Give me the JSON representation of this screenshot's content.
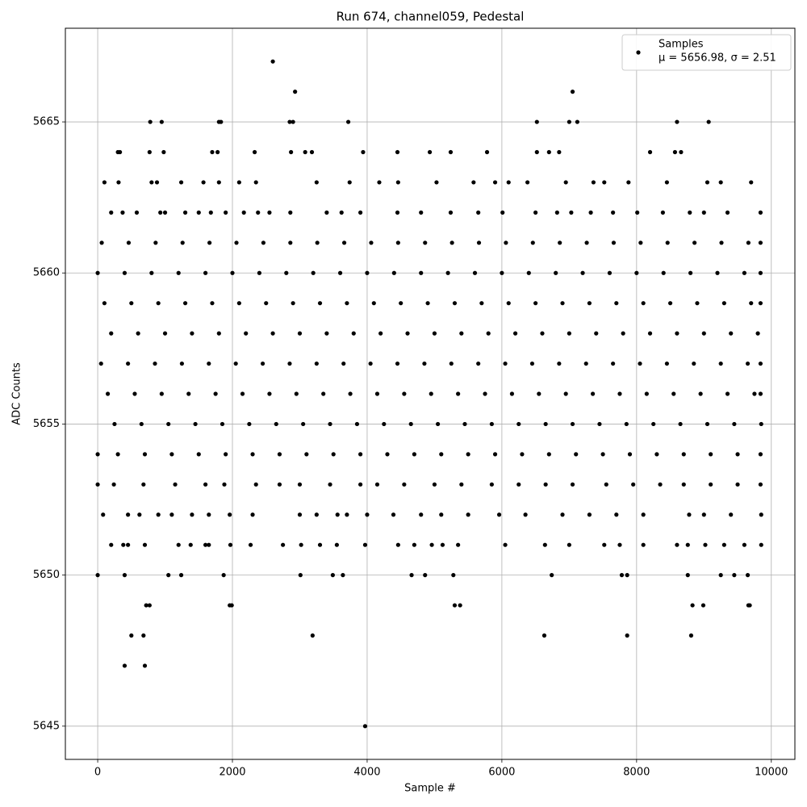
{
  "chart_data": {
    "type": "scatter",
    "title": "Run 674, channel059, Pedestal",
    "x_label": "Sample #",
    "y_label": "ADC Counts",
    "xlim": [
      -480,
      10350
    ],
    "ylim": [
      5643.9,
      5668.1
    ],
    "xticks": [
      0,
      2000,
      4000,
      6000,
      8000,
      10000
    ],
    "yticks": [
      5645,
      5650,
      5655,
      5660,
      5665
    ],
    "grid": true,
    "legend_position": "upper right",
    "legend_subtitle": "μ = 5656.98, σ = 2.51",
    "x": [
      400,
      700,
      3970,
      2600,
      2930,
      7050,
      780,
      950,
      1800,
      1830,
      2850,
      2900,
      3720,
      6520,
      7000,
      7120,
      8600,
      9070,
      500,
      680,
      3190,
      6630,
      7860,
      8810,
      720,
      770,
      1960,
      1990,
      5300,
      5380,
      8830,
      8990,
      9660,
      9680,
      0,
      400,
      1050,
      1240,
      1870,
      3010,
      3490,
      3640,
      4660,
      4860,
      5280,
      6740,
      7780,
      7860,
      8760,
      9250,
      9450,
      9650,
      300,
      330,
      770,
      980,
      1700,
      1780,
      2330,
      2870,
      3080,
      3180,
      3940,
      4450,
      4930,
      5240,
      5780,
      6520,
      6700,
      6850,
      8200,
      8570,
      8660,
      100,
      310,
      800,
      880,
      1240,
      1570,
      1800,
      2100,
      2350,
      3250,
      3740,
      4180,
      4460,
      5030,
      5580,
      5900,
      6100,
      6380,
      6950,
      7360,
      7520,
      7880,
      8450,
      9050,
      9250,
      9700,
      200,
      370,
      580,
      930,
      1000,
      1300,
      1500,
      1680,
      1900,
      2170,
      2380,
      2550,
      2860,
      3400,
      3620,
      3900,
      4450,
      4800,
      5240,
      5650,
      6010,
      6500,
      6820,
      7030,
      7320,
      7650,
      8010,
      8390,
      8790,
      9000,
      9350,
      9840,
      60,
      460,
      860,
      1260,
      1660,
      2060,
      2460,
      2860,
      3260,
      3660,
      4060,
      4460,
      4860,
      5260,
      5660,
      6060,
      6460,
      6860,
      7260,
      7660,
      8060,
      8460,
      8860,
      9260,
      9660,
      9840,
      0,
      400,
      800,
      1200,
      1600,
      2000,
      2400,
      2800,
      3200,
      3600,
      4000,
      4400,
      4800,
      5200,
      5600,
      6000,
      6400,
      6800,
      7200,
      7600,
      8000,
      8400,
      8800,
      9200,
      9600,
      9840,
      100,
      500,
      900,
      1300,
      1700,
      2100,
      2500,
      2900,
      3300,
      3700,
      4100,
      4500,
      4900,
      5300,
      5700,
      6100,
      6500,
      6900,
      7300,
      7700,
      8100,
      8500,
      8900,
      9300,
      9700,
      9840,
      200,
      600,
      1000,
      1400,
      1800,
      2200,
      2600,
      3000,
      3400,
      3800,
      4200,
      4600,
      5000,
      5400,
      5800,
      6200,
      6600,
      7000,
      7400,
      7800,
      8200,
      8600,
      9000,
      9400,
      9800,
      50,
      450,
      850,
      1250,
      1650,
      2050,
      2450,
      2850,
      3250,
      3650,
      4050,
      4450,
      4850,
      5250,
      5650,
      6050,
      6450,
      6850,
      7250,
      7650,
      8050,
      8450,
      8850,
      9250,
      9650,
      9840,
      150,
      550,
      950,
      1350,
      1750,
      2150,
      2550,
      2950,
      3350,
      3750,
      4150,
      4550,
      4950,
      5350,
      5750,
      6150,
      6550,
      6950,
      7350,
      7750,
      8150,
      8550,
      8950,
      9350,
      9750,
      9840,
      250,
      650,
      1050,
      1450,
      1850,
      2250,
      2650,
      3050,
      3450,
      3850,
      4250,
      4650,
      5050,
      5450,
      5850,
      6250,
      6650,
      7050,
      7450,
      7850,
      8250,
      8650,
      9050,
      9450,
      9850,
      0,
      300,
      700,
      1100,
      1500,
      1900,
      2300,
      2700,
      3100,
      3500,
      3900,
      4300,
      4700,
      5100,
      5500,
      5900,
      6300,
      6700,
      7100,
      7500,
      7900,
      8300,
      8700,
      9100,
      9500,
      9840,
      0,
      240,
      680,
      1150,
      1600,
      1880,
      2350,
      2700,
      3000,
      3450,
      3900,
      4150,
      4550,
      5000,
      5400,
      5850,
      6250,
      6650,
      7050,
      7550,
      7950,
      8350,
      8700,
      9100,
      9500,
      9840,
      80,
      450,
      620,
      900,
      1100,
      1400,
      1650,
      1960,
      2300,
      3000,
      3250,
      3560,
      3700,
      4000,
      4390,
      4800,
      5100,
      5500,
      5960,
      6350,
      6900,
      7300,
      7700,
      8100,
      8780,
      9000,
      9400,
      9850,
      200,
      380,
      450,
      700,
      1200,
      1380,
      1600,
      1650,
      1970,
      2270,
      2750,
      3020,
      3300,
      3550,
      3970,
      4460,
      4700,
      4960,
      5120,
      5350,
      6050,
      6640,
      7000,
      7520,
      7750,
      8100,
      8600,
      8760,
      9020,
      9300,
      9600,
      9850
    ],
    "series": [
      {
        "name": "Samples",
        "color": "#000000",
        "values": [
          5647,
          5647,
          5645,
          5667,
          5666,
          5666,
          5665,
          5665,
          5665,
          5665,
          5665,
          5665,
          5665,
          5665,
          5665,
          5665,
          5665,
          5665,
          5648,
          5648,
          5648,
          5648,
          5648,
          5648,
          5649,
          5649,
          5649,
          5649,
          5649,
          5649,
          5649,
          5649,
          5649,
          5649,
          5650,
          5650,
          5650,
          5650,
          5650,
          5650,
          5650,
          5650,
          5650,
          5650,
          5650,
          5650,
          5650,
          5650,
          5650,
          5650,
          5650,
          5650,
          5664,
          5664,
          5664,
          5664,
          5664,
          5664,
          5664,
          5664,
          5664,
          5664,
          5664,
          5664,
          5664,
          5664,
          5664,
          5664,
          5664,
          5664,
          5664,
          5664,
          5664,
          5663,
          5663,
          5663,
          5663,
          5663,
          5663,
          5663,
          5663,
          5663,
          5663,
          5663,
          5663,
          5663,
          5663,
          5663,
          5663,
          5663,
          5663,
          5663,
          5663,
          5663,
          5663,
          5663,
          5663,
          5663,
          5663,
          5662,
          5662,
          5662,
          5662,
          5662,
          5662,
          5662,
          5662,
          5662,
          5662,
          5662,
          5662,
          5662,
          5662,
          5662,
          5662,
          5662,
          5662,
          5662,
          5662,
          5662,
          5662,
          5662,
          5662,
          5662,
          5662,
          5662,
          5662,
          5662,
          5662,
          5662,
          5662,
          5661,
          5661,
          5661,
          5661,
          5661,
          5661,
          5661,
          5661,
          5661,
          5661,
          5661,
          5661,
          5661,
          5661,
          5661,
          5661,
          5661,
          5661,
          5661,
          5661,
          5661,
          5661,
          5661,
          5661,
          5661,
          5661,
          5660,
          5660,
          5660,
          5660,
          5660,
          5660,
          5660,
          5660,
          5660,
          5660,
          5660,
          5660,
          5660,
          5660,
          5660,
          5660,
          5660,
          5660,
          5660,
          5660,
          5660,
          5660,
          5660,
          5660,
          5660,
          5660,
          5659,
          5659,
          5659,
          5659,
          5659,
          5659,
          5659,
          5659,
          5659,
          5659,
          5659,
          5659,
          5659,
          5659,
          5659,
          5659,
          5659,
          5659,
          5659,
          5659,
          5659,
          5659,
          5659,
          5659,
          5659,
          5659,
          5658,
          5658,
          5658,
          5658,
          5658,
          5658,
          5658,
          5658,
          5658,
          5658,
          5658,
          5658,
          5658,
          5658,
          5658,
          5658,
          5658,
          5658,
          5658,
          5658,
          5658,
          5658,
          5658,
          5658,
          5658,
          5657,
          5657,
          5657,
          5657,
          5657,
          5657,
          5657,
          5657,
          5657,
          5657,
          5657,
          5657,
          5657,
          5657,
          5657,
          5657,
          5657,
          5657,
          5657,
          5657,
          5657,
          5657,
          5657,
          5657,
          5657,
          5657,
          5656,
          5656,
          5656,
          5656,
          5656,
          5656,
          5656,
          5656,
          5656,
          5656,
          5656,
          5656,
          5656,
          5656,
          5656,
          5656,
          5656,
          5656,
          5656,
          5656,
          5656,
          5656,
          5656,
          5656,
          5656,
          5656,
          5655,
          5655,
          5655,
          5655,
          5655,
          5655,
          5655,
          5655,
          5655,
          5655,
          5655,
          5655,
          5655,
          5655,
          5655,
          5655,
          5655,
          5655,
          5655,
          5655,
          5655,
          5655,
          5655,
          5655,
          5655,
          5654,
          5654,
          5654,
          5654,
          5654,
          5654,
          5654,
          5654,
          5654,
          5654,
          5654,
          5654,
          5654,
          5654,
          5654,
          5654,
          5654,
          5654,
          5654,
          5654,
          5654,
          5654,
          5654,
          5654,
          5654,
          5654,
          5653,
          5653,
          5653,
          5653,
          5653,
          5653,
          5653,
          5653,
          5653,
          5653,
          5653,
          5653,
          5653,
          5653,
          5653,
          5653,
          5653,
          5653,
          5653,
          5653,
          5653,
          5653,
          5653,
          5653,
          5653,
          5653,
          5652,
          5652,
          5652,
          5652,
          5652,
          5652,
          5652,
          5652,
          5652,
          5652,
          5652,
          5652,
          5652,
          5652,
          5652,
          5652,
          5652,
          5652,
          5652,
          5652,
          5652,
          5652,
          5652,
          5652,
          5652,
          5652,
          5652,
          5652,
          5651,
          5651,
          5651,
          5651,
          5651,
          5651,
          5651,
          5651,
          5651,
          5651,
          5651,
          5651,
          5651,
          5651,
          5651,
          5651,
          5651,
          5651,
          5651,
          5651,
          5651,
          5651,
          5651,
          5651,
          5651,
          5651,
          5651,
          5651,
          5651,
          5651,
          5651,
          5651
        ]
      }
    ]
  }
}
